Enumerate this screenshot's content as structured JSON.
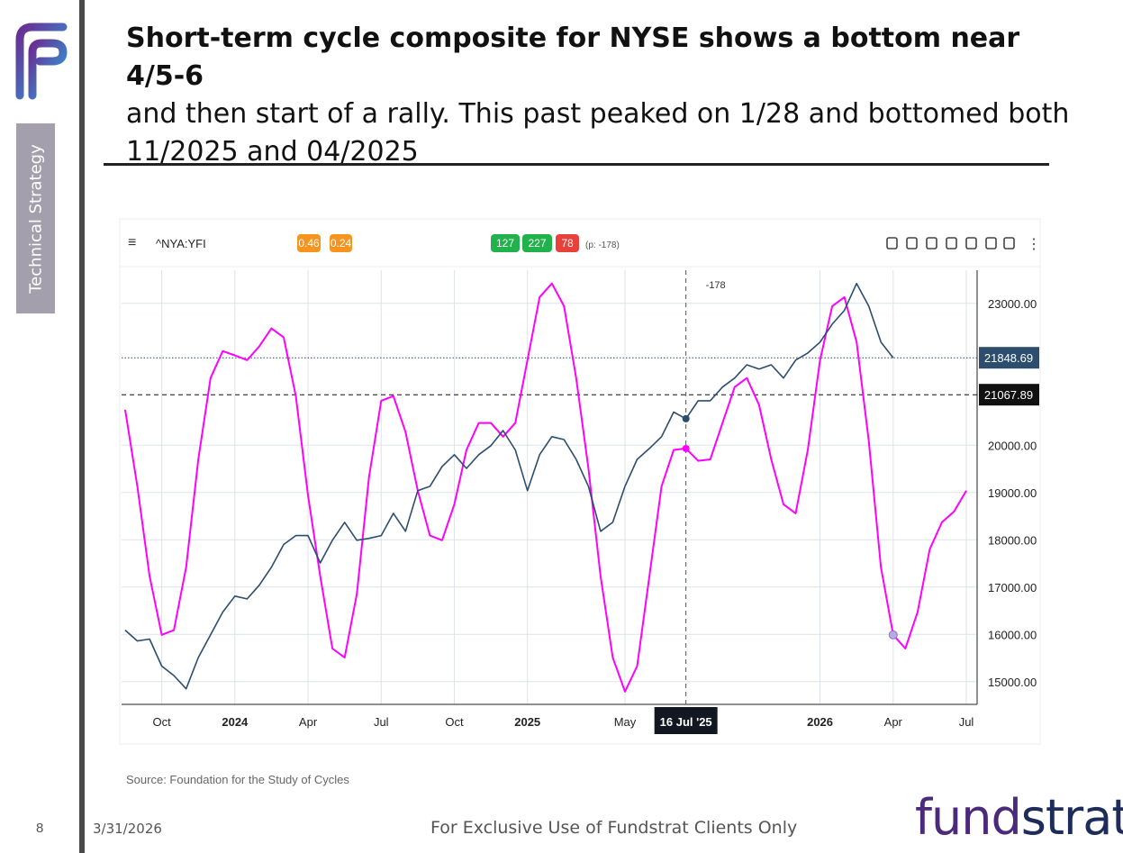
{
  "slide": {
    "title_bold": "Short-term cycle composite for NYSE shows a bottom near 4/5-6",
    "title_rest": "and then start of a rally.  This past peaked on 1/28 and bottomed both 11/2025 and 04/2025",
    "section": "Technical Strategy",
    "source": "Source:  Foundation for the Study of Cycles",
    "page_number": "8",
    "date": "3/31/2026",
    "footer": "For Exclusive Use of Fundstrat Clients Only",
    "logo": {
      "part1": "fund",
      "part2": "strat"
    }
  },
  "chart_data": {
    "type": "line",
    "symbol": "^NYA:YFI",
    "toolbar_badges": [
      {
        "text": "0.46",
        "color": "#f7941d"
      },
      {
        "text": "0.24",
        "color": "#f7941d"
      },
      {
        "text": "127",
        "color": "#21b24b"
      },
      {
        "text": "227",
        "color": "#21b24b"
      },
      {
        "text": "78",
        "color": "#e8403b"
      }
    ],
    "toolbar_note": "(p: -178)",
    "annotation": "-178",
    "categories": [
      null,
      null,
      null,
      "Oct",
      null,
      null,
      null,
      null,
      null,
      "2024",
      null,
      null,
      null,
      null,
      null,
      "Apr",
      null,
      null,
      null,
      null,
      null,
      "Jul",
      null,
      null,
      null,
      null,
      null,
      "Oct",
      null,
      null,
      null,
      null,
      null,
      "2025",
      null,
      null,
      null,
      null,
      null,
      null,
      null,
      "May",
      null,
      null,
      null,
      null,
      "16 Jul '25",
      null,
      null,
      null,
      null,
      null,
      null,
      null,
      null,
      null,
      null,
      "2026",
      null,
      null,
      null,
      null,
      null,
      "Apr",
      null,
      null,
      null,
      null,
      null,
      "Jul"
    ],
    "crosshair_index": 46,
    "series": [
      {
        "color": "#2c4d6e",
        "values": [
          16090,
          15860,
          15900,
          15330,
          15130,
          14850,
          15510,
          15990,
          16470,
          16810,
          16750,
          17040,
          17420,
          17900,
          18090,
          18090,
          17510,
          17990,
          18370,
          17990,
          18030,
          18090,
          18560,
          18180,
          19040,
          19130,
          19550,
          19800,
          19510,
          19800,
          19990,
          20310,
          19900,
          19040,
          19800,
          20180,
          20120,
          19700,
          19130,
          18180,
          18370,
          19130,
          19700,
          19930,
          20180,
          20700,
          20560,
          20940,
          20940,
          21230,
          21420,
          21700,
          21610,
          21700,
          21420,
          21800,
          21950,
          22180,
          22560,
          22850,
          23420,
          22940,
          22180,
          21848.69,
          null,
          null,
          null,
          null,
          null,
          null
        ]
      },
      {
        "color": "#ff00ff",
        "values": [
          20750,
          19130,
          17230,
          15990,
          16090,
          17420,
          19700,
          21420,
          21990,
          21900,
          21800,
          22090,
          22470,
          22280,
          21040,
          18940,
          17230,
          15700,
          15510,
          16850,
          19320,
          20940,
          21040,
          20280,
          19040,
          18090,
          17990,
          18750,
          19900,
          20470,
          20470,
          20180,
          20470,
          21800,
          23130,
          23420,
          22940,
          21420,
          19510,
          17230,
          15510,
          14790,
          15330,
          17230,
          19130,
          19900,
          19930,
          19670,
          19700,
          20470,
          21230,
          21420,
          20850,
          19700,
          18750,
          18560,
          19900,
          21800,
          22940,
          23130,
          22180,
          20090,
          17420,
          15990,
          15700,
          16470,
          17800,
          18370,
          18600,
          19040
        ]
      }
    ],
    "price_lines": [
      {
        "value": 21848.69,
        "label": "21848.69",
        "color": "#2c4d6e",
        "style": "dotted"
      },
      {
        "value": 21067.89,
        "label": "21067.89",
        "color": "#111111",
        "style": "dashed"
      }
    ],
    "ylim": [
      14520,
      23700
    ],
    "yticks": [
      {
        "value": 15000,
        "label": "15000.00"
      },
      {
        "value": 16000,
        "label": "16000.00"
      },
      {
        "value": 17000,
        "label": "17000.00"
      },
      {
        "value": 18000,
        "label": "18000.00"
      },
      {
        "value": 19000,
        "label": "19000.00"
      },
      {
        "value": 20000,
        "label": "20000.00"
      },
      {
        "value": 23000,
        "label": "23000.00"
      }
    ],
    "grid": true
  }
}
